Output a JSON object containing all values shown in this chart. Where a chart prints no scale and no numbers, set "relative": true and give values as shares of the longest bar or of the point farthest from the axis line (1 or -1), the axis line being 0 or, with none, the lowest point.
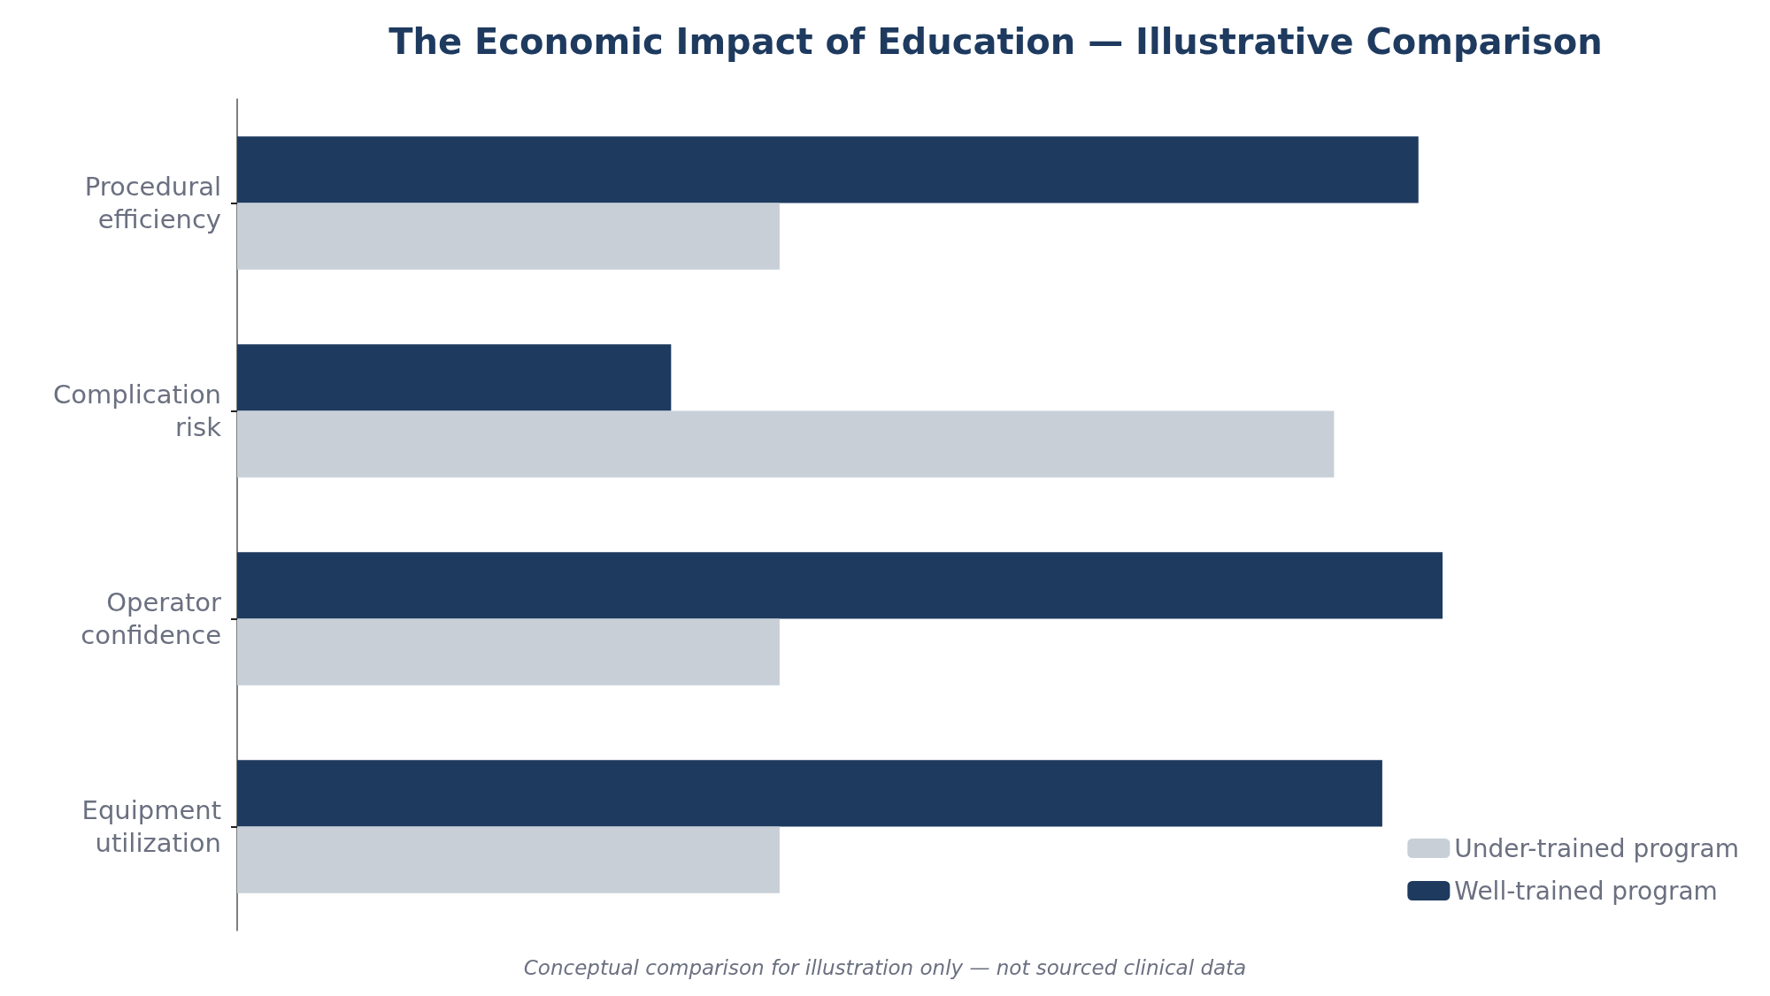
{
  "chart_data": {
    "type": "bar",
    "orientation": "horizontal",
    "relative": true,
    "title": "The Economic Impact of Education — Illustrative Comparison",
    "categories": [
      "Procedural\nefficiency",
      "Complication\nrisk",
      "Operator\nconfidence",
      "Equipment\nutilization"
    ],
    "series": [
      {
        "name": "Under-trained program",
        "color": "#c8cfd7",
        "values": [
          0.45,
          0.91,
          0.45,
          0.45
        ]
      },
      {
        "name": "Well-trained program",
        "color": "#1e3a5f",
        "values": [
          0.98,
          0.36,
          1,
          0.95
        ]
      }
    ],
    "legend": "bottom right",
    "annotations": [
      "Conceptual comparison for illustration only — not sourced clinical data"
    ]
  }
}
